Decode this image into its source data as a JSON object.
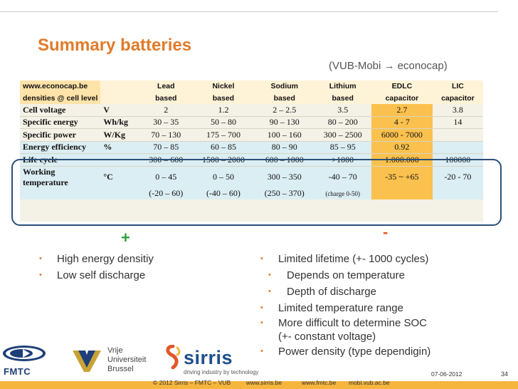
{
  "title": "Summary batteries",
  "subtitle": "(VUB-Mobi → econocap)",
  "table": {
    "source": "www.econocap.be",
    "cell_level_label": "densities @ cell level",
    "columns": [
      "Lead",
      "Nickel",
      "Sodium",
      "Lithium",
      "EDLC",
      "LIC"
    ],
    "based": [
      "based",
      "based",
      "based",
      "based",
      "capacitor",
      "capacitor"
    ],
    "rows": [
      {
        "label": "Cell voltage",
        "unit": "V",
        "values": [
          "2",
          "1.2",
          "2 – 2.5",
          "3.5",
          "2.7",
          "3.8"
        ]
      },
      {
        "label": "Specific energy",
        "unit": "Wh/kg",
        "values": [
          "30 – 35",
          "50 – 80",
          "90 – 130",
          "80 – 200",
          "4 - 7",
          "14"
        ]
      },
      {
        "label": "Specific power",
        "unit": "W/Kg",
        "values": [
          "70 – 130",
          "175 – 700",
          "100 – 160",
          "300 – 2500",
          "6000 - 7000",
          ""
        ]
      },
      {
        "label": "Energy efficiency",
        "unit": "%",
        "values": [
          "70 – 85",
          "60 – 85",
          "80 – 90",
          "85 – 95",
          "0.92",
          ""
        ]
      },
      {
        "label": "Life cycle",
        "unit": "",
        "values": [
          "300 – 600",
          "1500 – 2000",
          "600 – 1000",
          ">1000",
          "1.000.000",
          "100000"
        ]
      }
    ],
    "working_temp": {
      "label": "Working temperature",
      "unit": "°C",
      "values": [
        "0 – 45",
        "0 – 50",
        "300 – 350",
        "-40 – 70",
        "-35 ~ +65",
        "-20 - 70"
      ],
      "values2": [
        "(-20 – 60)",
        "(-40 – 60)",
        "(250 – 370)",
        "(charge 0-50)",
        "",
        ""
      ]
    }
  },
  "plus_sign": "+",
  "minus_sign": "-",
  "pros": [
    "High energy densitiy",
    "Low self discharge"
  ],
  "cons": [
    {
      "text": "Limited lifetime (+- 1000 cycles)",
      "level": 0
    },
    {
      "text": "Depends on temperature",
      "level": 1
    },
    {
      "text": "Depth of discharge",
      "level": 1
    },
    {
      "text": "Limited temperature range",
      "level": 0
    },
    {
      "text": "More difficult to determine SOC",
      "level": 0
    },
    {
      "text": "(+- constant voltage)",
      "level": 2
    },
    {
      "text": "Power density (type dependigin)",
      "level": 0
    }
  ],
  "bullet": "•",
  "logos": {
    "fmtc": "FMTC",
    "vub": [
      "Vrije",
      "Universiteit",
      "Brussel"
    ],
    "sirris": "sirris",
    "sirris_tag": "driving industry by technology"
  },
  "footer": {
    "date": "07-06-2012",
    "page": "34",
    "copyright": "© 2012 Sirris – FMTC – VUB",
    "links": [
      "www.sirris.be",
      "www.fmtc.be",
      "mobi.vub.ac.be"
    ]
  },
  "colors": {
    "title": "#e07b2a",
    "edlc_highlight": "#fbc14e",
    "footer_bar": "#f6b53c",
    "box": "#2a4f7a",
    "plus": "#2e9f3a",
    "minus": "#e0582a"
  }
}
